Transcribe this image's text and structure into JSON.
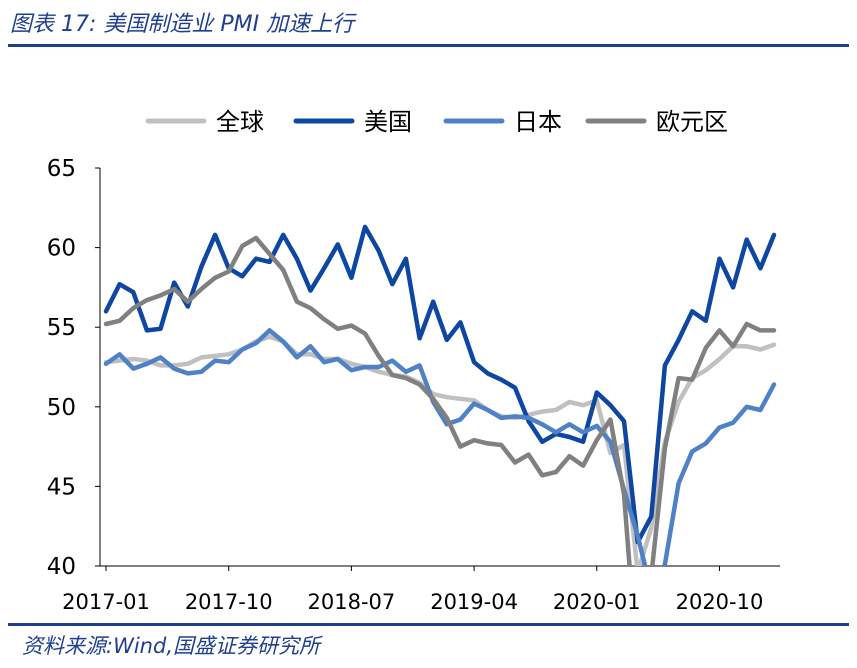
{
  "header": {
    "title": "图表 17:  美国制造业 PMI 加速上行"
  },
  "footer": {
    "source": "资料来源:Wind,国盛证券研究所"
  },
  "chart_data": {
    "type": "line",
    "x": [
      "2017-01",
      "2017-02",
      "2017-03",
      "2017-04",
      "2017-05",
      "2017-06",
      "2017-07",
      "2017-08",
      "2017-09",
      "2017-10",
      "2017-11",
      "2017-12",
      "2018-01",
      "2018-02",
      "2018-03",
      "2018-04",
      "2018-05",
      "2018-06",
      "2018-07",
      "2018-08",
      "2018-09",
      "2018-10",
      "2018-11",
      "2018-12",
      "2019-01",
      "2019-02",
      "2019-03",
      "2019-04",
      "2019-05",
      "2019-06",
      "2019-07",
      "2019-08",
      "2019-09",
      "2019-10",
      "2019-11",
      "2019-12",
      "2020-01",
      "2020-02",
      "2020-03",
      "2020-04",
      "2020-05",
      "2020-06",
      "2020-07",
      "2020-08",
      "2020-09",
      "2020-10",
      "2020-11",
      "2020-12",
      "2021-01",
      "2021-02"
    ],
    "xticks": [
      "2017-01",
      "2017-10",
      "2018-07",
      "2019-04",
      "2020-01",
      "2020-10"
    ],
    "ylim": [
      40,
      65
    ],
    "yticks": [
      40,
      45,
      50,
      55,
      60,
      65
    ],
    "legend": "top",
    "series": [
      {
        "name": "全球",
        "color": "#c0c0c0",
        "values": [
          52.8,
          52.9,
          53.0,
          52.9,
          52.6,
          52.6,
          52.7,
          53.1,
          53.2,
          53.3,
          53.6,
          54.1,
          54.4,
          54.1,
          53.3,
          53.3,
          53.0,
          53.0,
          52.7,
          52.5,
          52.2,
          52.0,
          51.9,
          51.5,
          50.8,
          50.6,
          50.5,
          50.4,
          49.8,
          49.4,
          49.3,
          49.5,
          49.7,
          49.8,
          50.3,
          50.1,
          50.4,
          47.1,
          47.6,
          39.6,
          42.4,
          47.8,
          50.3,
          51.8,
          52.3,
          53.0,
          53.8,
          53.8,
          53.6,
          53.9
        ]
      },
      {
        "name": "美国",
        "color": "#0d47a1",
        "values": [
          56.0,
          57.7,
          57.2,
          54.8,
          54.9,
          57.8,
          56.3,
          58.8,
          60.8,
          58.7,
          58.2,
          59.3,
          59.1,
          60.8,
          59.3,
          57.3,
          58.7,
          60.2,
          58.1,
          61.3,
          59.8,
          57.7,
          59.3,
          54.3,
          56.6,
          54.2,
          55.3,
          52.8,
          52.1,
          51.7,
          51.2,
          49.1,
          47.8,
          48.3,
          48.1,
          47.8,
          50.9,
          50.1,
          49.1,
          41.5,
          43.1,
          52.6,
          54.2,
          56.0,
          55.4,
          59.3,
          57.5,
          60.5,
          58.7,
          60.8
        ]
      },
      {
        "name": "日本",
        "color": "#4f81c7",
        "values": [
          52.7,
          53.3,
          52.4,
          52.7,
          53.1,
          52.4,
          52.1,
          52.2,
          52.9,
          52.8,
          53.6,
          54.0,
          54.8,
          54.1,
          53.1,
          53.8,
          52.8,
          53.0,
          52.3,
          52.5,
          52.5,
          52.9,
          52.2,
          52.6,
          50.3,
          48.9,
          49.2,
          50.2,
          49.8,
          49.3,
          49.4,
          49.3,
          48.9,
          48.4,
          48.9,
          48.4,
          48.8,
          47.8,
          44.8,
          41.9,
          38.4,
          40.1,
          45.2,
          47.2,
          47.7,
          48.7,
          49.0,
          50.0,
          49.8,
          51.4
        ]
      },
      {
        "name": "欧元区",
        "color": "#808080",
        "values": [
          55.2,
          55.4,
          56.2,
          56.7,
          57.0,
          57.4,
          56.6,
          57.4,
          58.1,
          58.5,
          60.1,
          60.6,
          59.6,
          58.6,
          56.6,
          56.2,
          55.5,
          54.9,
          55.1,
          54.6,
          53.2,
          52.0,
          51.8,
          51.4,
          50.5,
          49.3,
          47.5,
          47.9,
          47.7,
          47.6,
          46.5,
          47.0,
          45.7,
          45.9,
          46.9,
          46.3,
          47.9,
          49.2,
          44.5,
          33.4,
          39.4,
          47.4,
          51.8,
          51.7,
          53.7,
          54.8,
          53.8,
          55.2,
          54.8,
          54.8
        ]
      }
    ]
  }
}
